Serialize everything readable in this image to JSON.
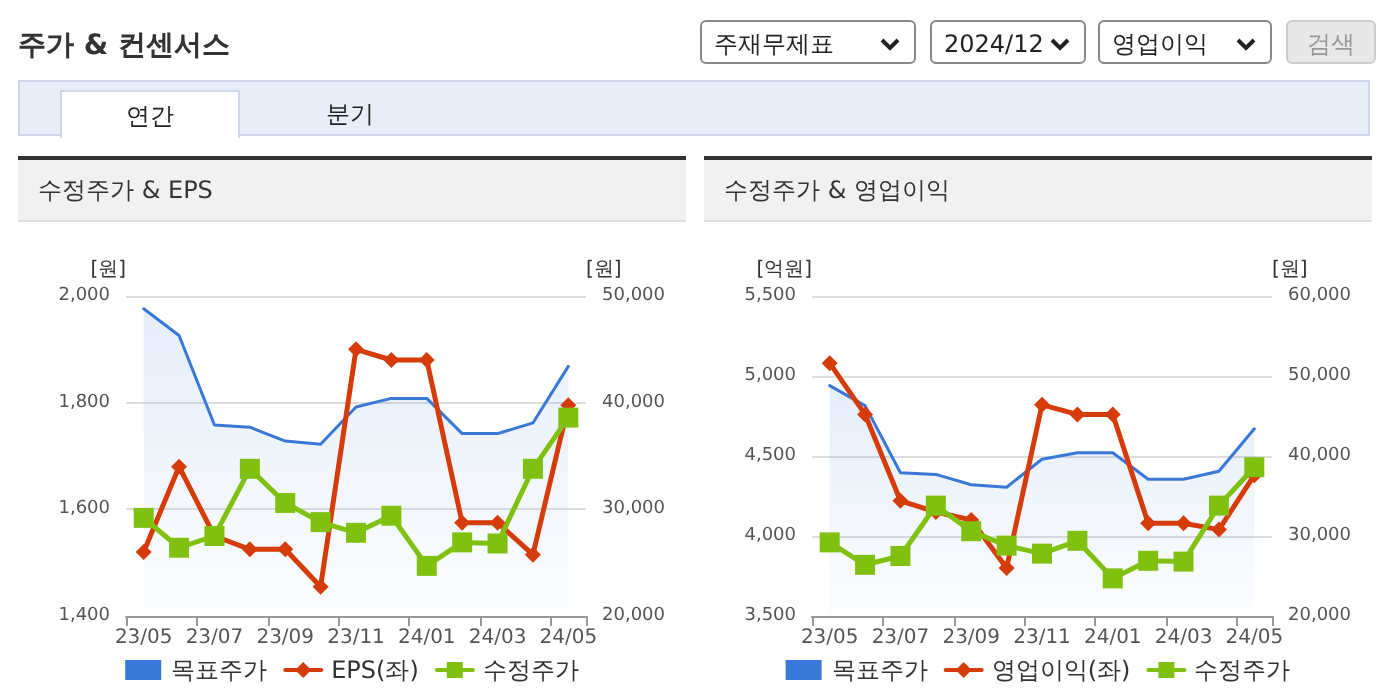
{
  "chart_data": [
    {
      "type": "other",
      "title": "주가 & 컨센서스",
      "annotations": [
        "주재무제표",
        "2024/12",
        "영업이익",
        "검색",
        "연간",
        "분기"
      ]
    },
    {
      "type": "line",
      "title": "수정주가 & EPS",
      "ylabel": "[원]",
      "y2label": "[원]",
      "categories": [
        "23/05",
        null,
        "23/07",
        null,
        "23/09",
        null,
        "23/11",
        null,
        "24/01",
        null,
        "24/03",
        null,
        "24/05"
      ],
      "series": [
        {
          "name": "목표주가",
          "type": "area",
          "axis": "y2",
          "color": "#3a78d8",
          "marker": "none",
          "values": [
            48800,
            46300,
            37900,
            37700,
            36400,
            36100,
            39600,
            40400,
            40400,
            37100,
            37100,
            38100,
            43400
          ]
        },
        {
          "name": "EPS(좌)",
          "type": "line",
          "color": "#d63c0a",
          "marker": "diamond",
          "values": [
            1520,
            1680,
            1550,
            1525,
            1525,
            1455,
            1900,
            1880,
            1880,
            1575,
            1575,
            1515,
            1795
          ]
        },
        {
          "name": "수정주가",
          "type": "line",
          "axis": "y2",
          "color": "#80c010",
          "marker": "square",
          "values": [
            29200,
            26400,
            27500,
            33800,
            30600,
            28800,
            27800,
            29400,
            24700,
            26900,
            26800,
            33800,
            38600
          ]
        }
      ],
      "ylim": [
        1400,
        2000
      ],
      "yticks": [
        {
          "value": 1400,
          "label": "1,400"
        },
        {
          "value": 1600,
          "label": "1,600"
        },
        {
          "value": 1800,
          "label": "1,800"
        },
        {
          "value": 2000,
          "label": "2,000"
        }
      ],
      "y2lim": [
        20000,
        50000
      ],
      "y2ticks": [
        {
          "value": 20000,
          "label": "20,000"
        },
        {
          "value": 30000,
          "label": "30,000"
        },
        {
          "value": 40000,
          "label": "40,000"
        },
        {
          "value": 50000,
          "label": "50,000"
        }
      ],
      "grid": "y",
      "legend": "bottom"
    },
    {
      "type": "line",
      "title": "수정주가 & 영업이익",
      "ylabel": "[억원]",
      "y2label": "[원]",
      "categories": [
        "23/05",
        null,
        "23/07",
        null,
        "23/09",
        null,
        "23/11",
        null,
        "24/01",
        null,
        "24/03",
        null,
        "24/05"
      ],
      "series": [
        {
          "name": "목표주가",
          "type": "area",
          "axis": "y2",
          "color": "#3a78d8",
          "marker": "none",
          "values": [
            48800,
            46300,
            37900,
            37700,
            36400,
            36100,
            39600,
            40400,
            40400,
            37100,
            37100,
            38100,
            43400
          ]
        },
        {
          "name": "영업이익(좌)",
          "type": "line",
          "color": "#d63c0a",
          "marker": "diamond",
          "values": [
            5080,
            4760,
            4220,
            4150,
            4100,
            3800,
            4820,
            4760,
            4760,
            4080,
            4080,
            4040,
            4380
          ]
        },
        {
          "name": "수정주가",
          "type": "line",
          "axis": "y2",
          "color": "#80c010",
          "marker": "square",
          "values": [
            29200,
            26400,
            27500,
            33800,
            30600,
            28800,
            27800,
            29400,
            24700,
            26900,
            26800,
            33800,
            38600
          ]
        }
      ],
      "ylim": [
        3500,
        5500
      ],
      "yticks": [
        {
          "value": 3500,
          "label": "3,500"
        },
        {
          "value": 4000,
          "label": "4,000"
        },
        {
          "value": 4500,
          "label": "4,500"
        },
        {
          "value": 5000,
          "label": "5,000"
        },
        {
          "value": 5500,
          "label": "5,500"
        }
      ],
      "y2lim": [
        20000,
        60000
      ],
      "y2ticks": [
        {
          "value": 20000,
          "label": "20,000"
        },
        {
          "value": 30000,
          "label": "30,000"
        },
        {
          "value": 40000,
          "label": "40,000"
        },
        {
          "value": 50000,
          "label": "50,000"
        },
        {
          "value": 60000,
          "label": "60,000"
        }
      ],
      "grid": "y",
      "legend": "bottom"
    }
  ]
}
